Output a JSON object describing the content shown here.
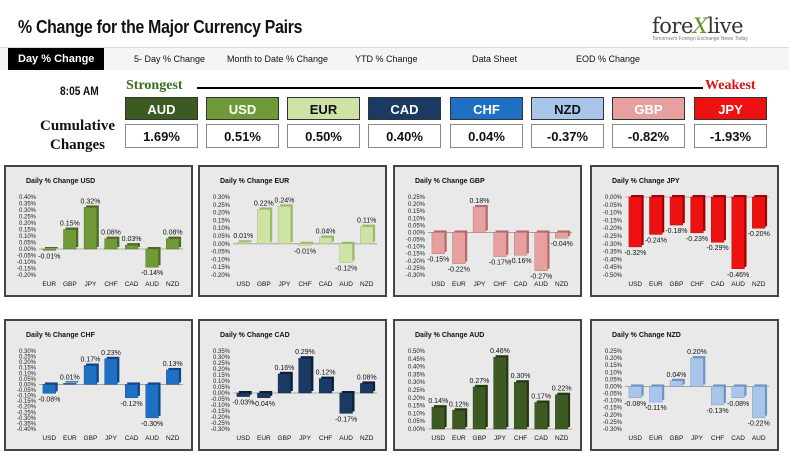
{
  "header": {
    "title": "% Change for the Major Currency Pairs",
    "logo_main_a": "fore",
    "logo_main_x": "X",
    "logo_main_b": "live",
    "logo_tag": "Tomorrow's Foreign Exchange News Today"
  },
  "tabs": [
    {
      "label": "Day % Change",
      "active": true
    },
    {
      "label": "5- Day % Change",
      "active": false
    },
    {
      "label": "Month to Date % Change",
      "active": false
    },
    {
      "label": "YTD % Change",
      "active": false
    },
    {
      "label": "Data Sheet",
      "active": false
    },
    {
      "label": "EOD % Change",
      "active": false
    }
  ],
  "summary": {
    "time": "8:05 AM",
    "strongest": "Strongest",
    "weakest": "Weakest",
    "cumulative_line1": "Cumulative",
    "cumulative_line2": "Changes",
    "currencies": [
      {
        "name": "AUD",
        "value": "1.69%",
        "color": "#3d5a22",
        "text_color": "#ffffff"
      },
      {
        "name": "USD",
        "value": "0.51%",
        "color": "#6f9a37",
        "text_color": "#ffffff"
      },
      {
        "name": "EUR",
        "value": "0.50%",
        "color": "#cfe3a7",
        "text_color": "#111111"
      },
      {
        "name": "CAD",
        "value": "0.40%",
        "color": "#1b3a63",
        "text_color": "#ffffff"
      },
      {
        "name": "CHF",
        "value": "0.04%",
        "color": "#1f6fc2",
        "text_color": "#ffffff"
      },
      {
        "name": "NZD",
        "value": "-0.37%",
        "color": "#a9c6ea",
        "text_color": "#111111"
      },
      {
        "name": "GBP",
        "value": "-0.82%",
        "color": "#e6a0a0",
        "text_color": "#ffffff"
      },
      {
        "name": "JPY",
        "value": "-1.93%",
        "color": "#ee1111",
        "text_color": "#ffffff"
      }
    ]
  },
  "chart_data": [
    {
      "type": "bar",
      "title": "Daily % Change USD",
      "categories": [
        "EUR",
        "GBP",
        "JPY",
        "CHF",
        "CAD",
        "AUD",
        "NZD"
      ],
      "values": [
        -0.01,
        0.15,
        0.32,
        0.08,
        0.03,
        -0.14,
        0.08
      ],
      "labels": [
        "-0.01%",
        "0.15%",
        "0.32%",
        "0.08%",
        "0.03%",
        "-0.14%",
        "0.08%"
      ],
      "ylim": [
        -0.2,
        0.4
      ],
      "ytick_step": 0.05,
      "color": "#6f9a37",
      "dark": "#4a6b22",
      "ytick_labels": [
        "0.40%",
        "0.35%",
        "0.30%",
        "0.25%",
        "0.20%",
        "0.15%",
        "0.10%",
        "0.05%",
        "0.00%",
        "-0.05%",
        "-0.10%",
        "-0.15%",
        "-0.20%"
      ]
    },
    {
      "type": "bar",
      "title": "Daily % Change EUR",
      "categories": [
        "USD",
        "GBP",
        "JPY",
        "CHF",
        "CAD",
        "AUD",
        "NZD"
      ],
      "values": [
        0.01,
        0.22,
        0.24,
        -0.01,
        0.04,
        -0.12,
        0.11
      ],
      "labels": [
        "0.01%",
        "0.22%",
        "0.24%",
        "-0.01%",
        "0.04%",
        "-0.12%",
        "0.11%"
      ],
      "ylim": [
        -0.2,
        0.3
      ],
      "ytick_step": 0.05,
      "color": "#cfe3a7",
      "dark": "#98b86a",
      "ytick_labels": [
        "0.30%",
        "0.25%",
        "0.20%",
        "0.15%",
        "0.10%",
        "0.05%",
        "0.00%",
        "-0.05%",
        "-0.10%",
        "-0.15%",
        "-0.20%"
      ]
    },
    {
      "type": "bar",
      "title": "Daily % Change GBP",
      "categories": [
        "USD",
        "EUR",
        "JPY",
        "CHF",
        "CAD",
        "AUD",
        "NZD"
      ],
      "values": [
        -0.15,
        -0.22,
        0.18,
        -0.17,
        -0.16,
        -0.27,
        -0.04
      ],
      "labels": [
        "-0.15%",
        "-0.22%",
        "0.18%",
        "-0.17%",
        "-0.16%",
        "-0.27%",
        "-0.04%"
      ],
      "ylim": [
        -0.3,
        0.25
      ],
      "ytick_step": 0.05,
      "color": "#e6a0a0",
      "dark": "#b56a6a",
      "ytick_labels": [
        "0.25%",
        "0.20%",
        "0.15%",
        "0.10%",
        "0.05%",
        "0.00%",
        "-0.05%",
        "-0.10%",
        "-0.15%",
        "-0.20%",
        "-0.25%",
        "-0.30%"
      ]
    },
    {
      "type": "bar",
      "title": "Daily % Change JPY",
      "categories": [
        "USD",
        "EUR",
        "GBP",
        "CHF",
        "CAD",
        "AUD",
        "NZD"
      ],
      "values": [
        -0.32,
        -0.24,
        -0.18,
        -0.23,
        -0.29,
        -0.46,
        -0.2
      ],
      "labels": [
        "-0.32%",
        "-0.24%",
        "-0.18%",
        "-0.23%",
        "-0.29%",
        "-0.46%",
        "-0.20%"
      ],
      "ylim": [
        -0.5,
        0.0
      ],
      "ytick_step": 0.05,
      "color": "#ee1111",
      "dark": "#a00000",
      "ytick_labels": [
        "0.00%",
        "-0.05%",
        "-0.10%",
        "-0.15%",
        "-0.20%",
        "-0.25%",
        "-0.30%",
        "-0.35%",
        "-0.40%",
        "-0.45%",
        "-0.50%"
      ]
    },
    {
      "type": "bar",
      "title": "Daily % Change CHF",
      "categories": [
        "USD",
        "EUR",
        "GBP",
        "JPY",
        "CAD",
        "AUD",
        "NZD"
      ],
      "values": [
        -0.08,
        0.01,
        0.17,
        0.23,
        -0.12,
        -0.3,
        0.13
      ],
      "labels": [
        "-0.08%",
        "0.01%",
        "0.17%",
        "0.23%",
        "-0.12%",
        "-0.30%",
        "0.13%"
      ],
      "ylim": [
        -0.4,
        0.3
      ],
      "ytick_step": 0.05,
      "color": "#1f6fc2",
      "dark": "#0f4585",
      "ytick_labels": [
        "0.30%",
        "0.25%",
        "0.20%",
        "0.15%",
        "0.10%",
        "0.05%",
        "0.00%",
        "-0.05%",
        "-0.10%",
        "-0.15%",
        "-0.20%",
        "-0.25%",
        "-0.30%",
        "-0.35%",
        "-0.40%"
      ]
    },
    {
      "type": "bar",
      "title": "Daily % Change CAD",
      "categories": [
        "USD",
        "EUR",
        "GBP",
        "JPY",
        "CHF",
        "AUD",
        "NZD"
      ],
      "values": [
        -0.03,
        -0.04,
        0.16,
        0.29,
        0.12,
        -0.17,
        0.08
      ],
      "labels": [
        "-0.03%",
        "-0.04%",
        "0.16%",
        "0.29%",
        "0.12%",
        "-0.17%",
        "0.08%"
      ],
      "ylim": [
        -0.3,
        0.35
      ],
      "ytick_step": 0.05,
      "color": "#1b3a63",
      "dark": "#0b1f3a",
      "ytick_labels": [
        "0.35%",
        "0.30%",
        "0.25%",
        "0.20%",
        "0.15%",
        "0.10%",
        "0.05%",
        "0.00%",
        "-0.05%",
        "-0.10%",
        "-0.15%",
        "-0.20%",
        "-0.25%",
        "-0.30%"
      ]
    },
    {
      "type": "bar",
      "title": "Daily % Change AUD",
      "categories": [
        "USD",
        "EUR",
        "GBP",
        "JPY",
        "CHF",
        "CAD",
        "NZD"
      ],
      "values": [
        0.14,
        0.12,
        0.27,
        0.46,
        0.3,
        0.17,
        0.22
      ],
      "labels": [
        "0.14%",
        "0.12%",
        "0.27%",
        "0.46%",
        "0.30%",
        "0.17%",
        "0.22%"
      ],
      "ylim": [
        0.0,
        0.5
      ],
      "ytick_step": 0.05,
      "color": "#3d5a22",
      "dark": "#243814",
      "ytick_labels": [
        "0.50%",
        "0.45%",
        "0.40%",
        "0.35%",
        "0.30%",
        "0.25%",
        "0.20%",
        "0.15%",
        "0.10%",
        "0.05%",
        "0.00%"
      ]
    },
    {
      "type": "bar",
      "title": "Daily % Change NZD",
      "categories": [
        "USD",
        "EUR",
        "GBP",
        "JPY",
        "CHF",
        "CAD",
        "AUD"
      ],
      "values": [
        -0.08,
        -0.11,
        0.04,
        0.2,
        -0.13,
        -0.08,
        -0.22
      ],
      "labels": [
        "-0.08%",
        "-0.11%",
        "0.04%",
        "0.20%",
        "-0.13%",
        "-0.08%",
        "-0.22%"
      ],
      "ylim": [
        -0.3,
        0.25
      ],
      "ytick_step": 0.05,
      "color": "#a9c6ea",
      "dark": "#6f94c2",
      "ytick_labels": [
        "0.25%",
        "0.20%",
        "0.15%",
        "0.10%",
        "0.05%",
        "0.00%",
        "-0.05%",
        "-0.10%",
        "-0.15%",
        "-0.20%",
        "-0.25%",
        "-0.30%"
      ]
    }
  ]
}
